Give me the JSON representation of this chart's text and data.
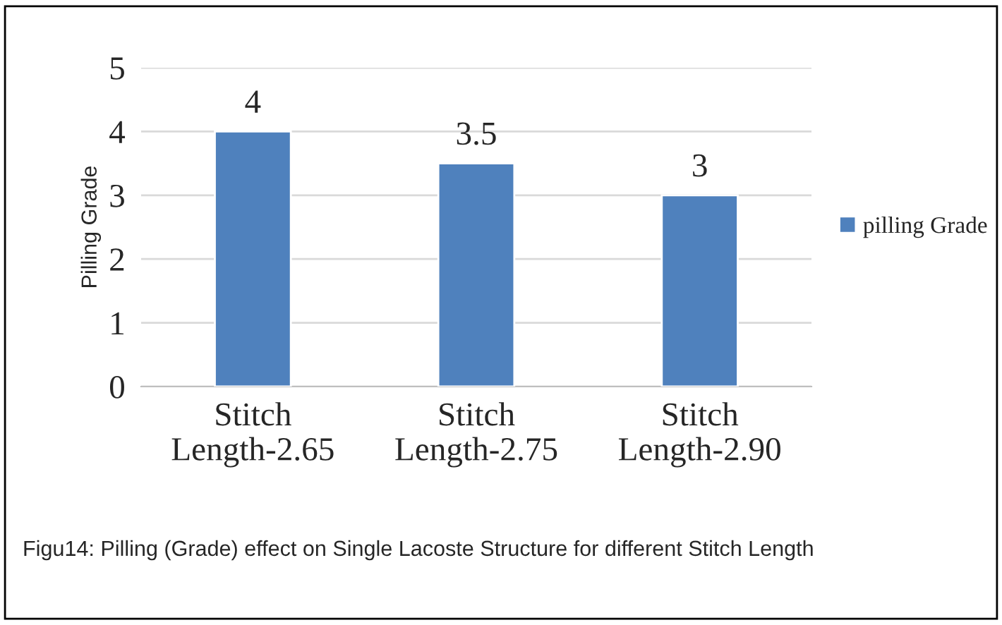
{
  "chart_data": {
    "type": "bar",
    "ylabel": "Pilling Grade",
    "categories": [
      "Stitch\nLength-2.65",
      "Stitch\nLength-2.75",
      "Stitch\nLength-2.90"
    ],
    "series": [
      {
        "name": "pilling Grade",
        "color": "#4f81bd",
        "values": [
          4,
          3.5,
          3
        ]
      }
    ],
    "ylim": [
      0,
      5
    ],
    "yticks": [
      0,
      1,
      2,
      3,
      4,
      5
    ],
    "grid": "y",
    "legend": "right",
    "data_labels": true,
    "annotations": [
      "Figu14: Pilling (Grade) effect on Single Lacoste Structure for different Stitch Length"
    ]
  }
}
